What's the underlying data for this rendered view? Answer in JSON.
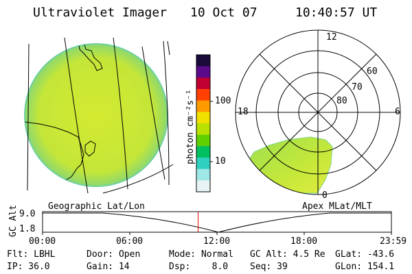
{
  "header": {
    "instrument": "Ultraviolet Imager",
    "date": "10 Oct 07",
    "time": "10:40:57 UT"
  },
  "geo_panel": {
    "label": "Geographic Lat/Lon"
  },
  "polar_panel": {
    "label": "Apex MLat/MLT",
    "mlt_labels": {
      "top": "12",
      "left": "18",
      "right": "6",
      "bottom": "0"
    },
    "lat_labels": [
      "60",
      "70",
      "80"
    ]
  },
  "colorbar": {
    "unit_label": "photon cm⁻²s⁻¹",
    "ticks": [
      "100",
      "10"
    ],
    "colors": [
      "#1a0a3a",
      "#5a0a8a",
      "#c00030",
      "#ff4000",
      "#ff9a00",
      "#f0e000",
      "#b8e000",
      "#60d000",
      "#00c060",
      "#30d0c0",
      "#a0e8e8",
      "#e8f4f4"
    ]
  },
  "timeline": {
    "ylabel": "GC Alt",
    "yticks": [
      "9.0",
      "1.8"
    ],
    "xticks": [
      "00:00",
      "06:00",
      "12:00",
      "18:00",
      "23:59"
    ],
    "current_time_fraction": 0.446,
    "marker_color": "#e00000"
  },
  "info": {
    "row1": {
      "filter": "Flt: LBHL",
      "door": "Door: Open",
      "mode": "Mode: Normal",
      "gcalt": "GC Alt: 4.5 Re",
      "glat": "GLat: -43.6"
    },
    "row2": {
      "ip": "IP: 36.0",
      "gain": "Gain: 14",
      "dsp": "Dsp:    8.0",
      "seq": "Seq: 39",
      "glon": "GLon: 154.1"
    }
  },
  "colors": {
    "image_fill": "#c6e83a",
    "image_edge": "#7ed48a"
  }
}
